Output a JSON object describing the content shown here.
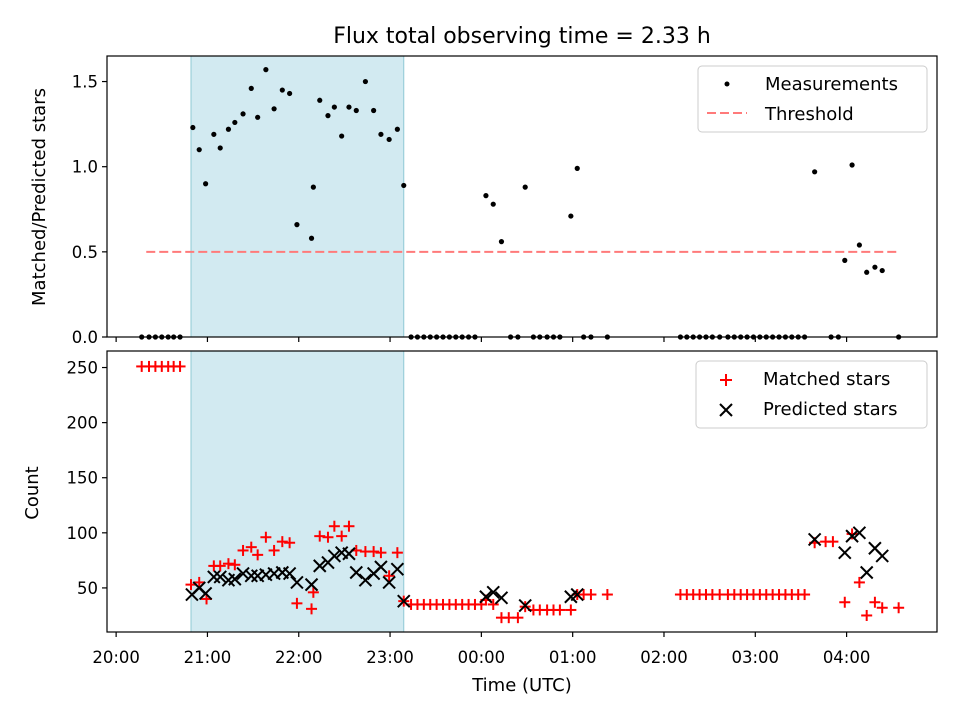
{
  "chart_data": {
    "title": "Flux total observing time = 2.33 h",
    "xlabel": "Time (UTC)",
    "x_ticks": [
      "20:00",
      "21:00",
      "22:00",
      "23:00",
      "00:00",
      "01:00",
      "02:00",
      "03:00",
      "04:00"
    ],
    "x_tick_hours": [
      20,
      21,
      22,
      23,
      24,
      25,
      26,
      27,
      28
    ],
    "xlim": [
      19.9,
      28.99
    ],
    "observing_window": {
      "start": 20.82,
      "end": 23.15,
      "color": "#add8e6"
    },
    "panels": [
      {
        "type": "scatter",
        "ylabel": "Matched/Predicted stars",
        "ylim": [
          0,
          1.65
        ],
        "yticks": [
          0,
          0.5,
          1.0,
          1.5
        ],
        "ytick_labels": [
          "0.0",
          "0.5",
          "1.0",
          "1.5"
        ],
        "legend_position": "top-right",
        "series": [
          {
            "name": "Measurements",
            "marker": "dot",
            "color": "#000000",
            "points": [
              [
                20.28,
                0
              ],
              [
                20.36,
                0
              ],
              [
                20.43,
                0
              ],
              [
                20.5,
                0
              ],
              [
                20.57,
                0
              ],
              [
                20.63,
                0
              ],
              [
                20.7,
                0
              ],
              [
                20.84,
                1.23
              ],
              [
                20.91,
                1.1
              ],
              [
                20.98,
                0.9
              ],
              [
                21.07,
                1.19
              ],
              [
                21.14,
                1.11
              ],
              [
                21.23,
                1.22
              ],
              [
                21.3,
                1.26
              ],
              [
                21.39,
                1.31
              ],
              [
                21.48,
                1.46
              ],
              [
                21.55,
                1.29
              ],
              [
                21.64,
                1.57
              ],
              [
                21.73,
                1.34
              ],
              [
                21.82,
                1.45
              ],
              [
                21.9,
                1.43
              ],
              [
                21.98,
                0.66
              ],
              [
                22.14,
                0.58
              ],
              [
                22.16,
                0.88
              ],
              [
                22.23,
                1.39
              ],
              [
                22.32,
                1.3
              ],
              [
                22.39,
                1.35
              ],
              [
                22.47,
                1.18
              ],
              [
                22.55,
                1.35
              ],
              [
                22.63,
                1.33
              ],
              [
                22.73,
                1.5
              ],
              [
                22.82,
                1.33
              ],
              [
                22.9,
                1.19
              ],
              [
                22.99,
                1.16
              ],
              [
                23.08,
                1.22
              ],
              [
                23.15,
                0.89
              ],
              [
                23.23,
                0
              ],
              [
                23.3,
                0
              ],
              [
                23.37,
                0
              ],
              [
                23.44,
                0
              ],
              [
                23.51,
                0
              ],
              [
                23.58,
                0
              ],
              [
                23.65,
                0
              ],
              [
                23.72,
                0
              ],
              [
                23.79,
                0
              ],
              [
                23.86,
                0
              ],
              [
                23.93,
                0
              ],
              [
                24.05,
                0.83
              ],
              [
                24.13,
                0.78
              ],
              [
                24.22,
                0.56
              ],
              [
                24.32,
                0
              ],
              [
                24.4,
                0
              ],
              [
                24.48,
                0.88
              ],
              [
                24.57,
                0
              ],
              [
                24.64,
                0
              ],
              [
                24.72,
                0
              ],
              [
                24.79,
                0
              ],
              [
                24.86,
                0
              ],
              [
                24.98,
                0.71
              ],
              [
                25.05,
                0.99
              ],
              [
                25.12,
                0
              ],
              [
                25.2,
                0
              ],
              [
                25.38,
                0
              ],
              [
                26.18,
                0
              ],
              [
                26.25,
                0
              ],
              [
                26.32,
                0
              ],
              [
                26.39,
                0
              ],
              [
                26.46,
                0
              ],
              [
                26.53,
                0
              ],
              [
                26.61,
                0
              ],
              [
                26.7,
                0
              ],
              [
                26.77,
                0
              ],
              [
                26.84,
                0
              ],
              [
                26.91,
                0
              ],
              [
                26.98,
                0
              ],
              [
                27.05,
                0
              ],
              [
                27.12,
                0
              ],
              [
                27.19,
                0
              ],
              [
                27.26,
                0
              ],
              [
                27.33,
                0
              ],
              [
                27.4,
                0
              ],
              [
                27.47,
                0
              ],
              [
                27.54,
                0
              ],
              [
                27.65,
                0.97
              ],
              [
                27.83,
                0
              ],
              [
                27.91,
                0
              ],
              [
                27.98,
                0.45
              ],
              [
                28.06,
                1.01
              ],
              [
                28.14,
                0.54
              ],
              [
                28.22,
                0.38
              ],
              [
                28.31,
                0.41
              ],
              [
                28.39,
                0.39
              ],
              [
                28.57,
                0
              ]
            ]
          },
          {
            "name": "Threshold",
            "marker": "dashed-line",
            "color": "#ff7a7a",
            "x": [
              20.33,
              28.57
            ],
            "y": [
              0.5,
              0.5
            ]
          }
        ]
      },
      {
        "type": "scatter",
        "ylabel": "Count",
        "ylim": [
          10,
          265
        ],
        "yticks": [
          50,
          100,
          150,
          200,
          250
        ],
        "ytick_labels": [
          "50",
          "100",
          "150",
          "200",
          "250"
        ],
        "legend_position": "top-right",
        "series": [
          {
            "name": "Matched stars",
            "marker": "plus",
            "color": "#ff0000",
            "points": [
              [
                20.28,
                251
              ],
              [
                20.36,
                251
              ],
              [
                20.43,
                251
              ],
              [
                20.5,
                251
              ],
              [
                20.57,
                251
              ],
              [
                20.63,
                251
              ],
              [
                20.7,
                251
              ],
              [
                20.82,
                53
              ],
              [
                20.91,
                55
              ],
              [
                20.99,
                40
              ],
              [
                21.07,
                70
              ],
              [
                21.14,
                70
              ],
              [
                21.23,
                72
              ],
              [
                21.3,
                71
              ],
              [
                21.39,
                84
              ],
              [
                21.48,
                87
              ],
              [
                21.55,
                80
              ],
              [
                21.64,
                96
              ],
              [
                21.73,
                84
              ],
              [
                21.82,
                92
              ],
              [
                21.9,
                91
              ],
              [
                21.98,
                36
              ],
              [
                22.14,
                31
              ],
              [
                22.16,
                46
              ],
              [
                22.23,
                97
              ],
              [
                22.32,
                96
              ],
              [
                22.39,
                106
              ],
              [
                22.47,
                97
              ],
              [
                22.55,
                106
              ],
              [
                22.63,
                84
              ],
              [
                22.73,
                83
              ],
              [
                22.82,
                83
              ],
              [
                22.9,
                82
              ],
              [
                22.99,
                61
              ],
              [
                23.08,
                82
              ],
              [
                23.15,
                38
              ],
              [
                23.23,
                35
              ],
              [
                23.3,
                35
              ],
              [
                23.37,
                35
              ],
              [
                23.44,
                35
              ],
              [
                23.51,
                35
              ],
              [
                23.58,
                35
              ],
              [
                23.65,
                35
              ],
              [
                23.72,
                35
              ],
              [
                23.79,
                35
              ],
              [
                23.86,
                35
              ],
              [
                23.93,
                35
              ],
              [
                24.0,
                35
              ],
              [
                24.05,
                39
              ],
              [
                24.13,
                35
              ],
              [
                24.22,
                23
              ],
              [
                24.3,
                23
              ],
              [
                24.4,
                23
              ],
              [
                24.48,
                33
              ],
              [
                24.57,
                30
              ],
              [
                24.64,
                30
              ],
              [
                24.72,
                30
              ],
              [
                24.79,
                30
              ],
              [
                24.86,
                30
              ],
              [
                24.98,
                30
              ],
              [
                25.05,
                44
              ],
              [
                25.12,
                44
              ],
              [
                25.2,
                44
              ],
              [
                25.38,
                44
              ],
              [
                26.18,
                44
              ],
              [
                26.25,
                44
              ],
              [
                26.32,
                44
              ],
              [
                26.39,
                44
              ],
              [
                26.46,
                44
              ],
              [
                26.53,
                44
              ],
              [
                26.61,
                44
              ],
              [
                26.7,
                44
              ],
              [
                26.77,
                44
              ],
              [
                26.84,
                44
              ],
              [
                26.91,
                44
              ],
              [
                26.98,
                44
              ],
              [
                27.05,
                44
              ],
              [
                27.12,
                44
              ],
              [
                27.19,
                44
              ],
              [
                27.26,
                44
              ],
              [
                27.33,
                44
              ],
              [
                27.4,
                44
              ],
              [
                27.47,
                44
              ],
              [
                27.54,
                44
              ],
              [
                27.65,
                91
              ],
              [
                27.77,
                92
              ],
              [
                27.85,
                92
              ],
              [
                27.98,
                37
              ],
              [
                28.06,
                99
              ],
              [
                28.14,
                55
              ],
              [
                28.22,
                25
              ],
              [
                28.31,
                37
              ],
              [
                28.39,
                32
              ],
              [
                28.57,
                32
              ]
            ]
          },
          {
            "name": "Predicted stars",
            "marker": "x",
            "color": "#000000",
            "points": [
              [
                20.83,
                44
              ],
              [
                20.91,
                50
              ],
              [
                20.98,
                45
              ],
              [
                21.07,
                60
              ],
              [
                21.14,
                60
              ],
              [
                21.23,
                57
              ],
              [
                21.3,
                58
              ],
              [
                21.39,
                63
              ],
              [
                21.48,
                61
              ],
              [
                21.55,
                61
              ],
              [
                21.64,
                62
              ],
              [
                21.73,
                63
              ],
              [
                21.82,
                64
              ],
              [
                21.9,
                63
              ],
              [
                21.98,
                55
              ],
              [
                22.14,
                53
              ],
              [
                22.23,
                70
              ],
              [
                22.32,
                73
              ],
              [
                22.39,
                79
              ],
              [
                22.47,
                82
              ],
              [
                22.55,
                81
              ],
              [
                22.63,
                64
              ],
              [
                22.73,
                57
              ],
              [
                22.82,
                63
              ],
              [
                22.9,
                69
              ],
              [
                22.99,
                55
              ],
              [
                23.08,
                67
              ],
              [
                23.15,
                38
              ],
              [
                24.05,
                42
              ],
              [
                24.13,
                46
              ],
              [
                24.22,
                41
              ],
              [
                24.48,
                34
              ],
              [
                24.98,
                42
              ],
              [
                25.05,
                44
              ],
              [
                27.65,
                94
              ],
              [
                27.98,
                82
              ],
              [
                28.06,
                97
              ],
              [
                28.14,
                100
              ],
              [
                28.22,
                64
              ],
              [
                28.31,
                86
              ],
              [
                28.39,
                79
              ]
            ]
          }
        ]
      }
    ]
  }
}
